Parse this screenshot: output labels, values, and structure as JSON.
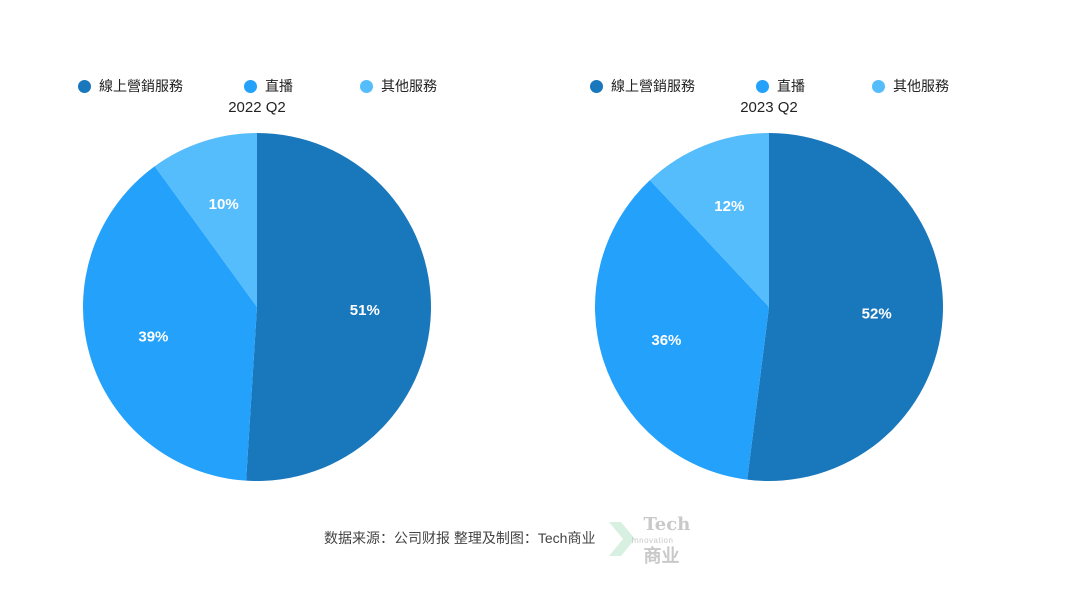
{
  "chart_data": [
    {
      "type": "pie",
      "title": "2022 Q2",
      "categories": [
        "線上營銷服務",
        "直播",
        "其他服務"
      ],
      "values": [
        51,
        39,
        10
      ],
      "labels": [
        "51%",
        "39%",
        "10%"
      ],
      "colors": [
        "#1977bc",
        "#23a1fb",
        "#56bdfd"
      ],
      "legend_position": "top"
    },
    {
      "type": "pie",
      "title": "2023 Q2",
      "categories": [
        "線上營銷服務",
        "直播",
        "其他服務"
      ],
      "values": [
        52,
        36,
        12
      ],
      "labels": [
        "52%",
        "36%",
        "12%"
      ],
      "colors": [
        "#1977bc",
        "#23a1fb",
        "#56bdfd"
      ],
      "legend_position": "top"
    }
  ],
  "footer": {
    "source": "数据来源：公司财报 整理及制图：Tech商业"
  },
  "logo": {
    "top": "Tech",
    "middle": "Innovation",
    "bottom": "商业"
  }
}
